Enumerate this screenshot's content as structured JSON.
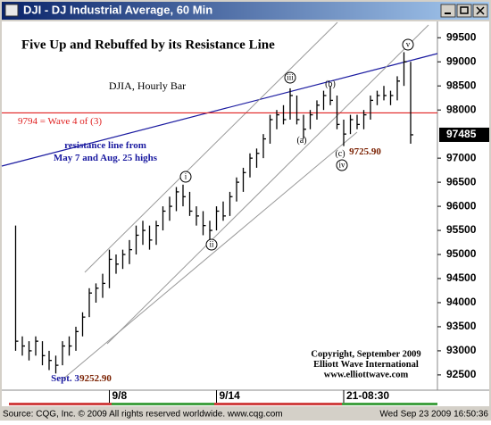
{
  "window_title": "DJI - DJ Industrial Average, 60 Min",
  "status_bar": {
    "source": "Source: CQG, Inc. © 2009 All rights reserved worldwide. www.cqg.com",
    "datetime": "Wed Sep 23 2009 16:50:36"
  },
  "chart_data": {
    "type": "ohlc",
    "title": "Five Up and Rebuffed by its Resistance Line",
    "subtitle": "DJIA, Hourly Bar",
    "color": "#000000",
    "high": [
      95600,
      93300,
      93200,
      93300,
      93200,
      93000,
      92900,
      93200,
      93300,
      93500,
      93800,
      94300,
      94400,
      94600,
      95100,
      95000,
      95100,
      95300,
      95600,
      95700,
      95600,
      95700,
      96000,
      96200,
      96400,
      96450,
      96300,
      96000,
      95900,
      95700,
      96000,
      96100,
      96300,
      96600,
      96800,
      97100,
      97200,
      97500,
      97900,
      98000,
      98100,
      98450,
      98300,
      97900,
      98000,
      98200,
      98400,
      98500,
      98300,
      97800,
      97900,
      97900,
      98000,
      98300,
      98400,
      98500,
      98400,
      98700,
      99200,
      99000
    ],
    "low": [
      93000,
      92900,
      92800,
      92900,
      92700,
      92600,
      92529,
      92700,
      92900,
      93000,
      93300,
      93700,
      94000,
      94100,
      94300,
      94600,
      94700,
      94800,
      95000,
      95200,
      95100,
      95200,
      95500,
      95700,
      95900,
      96000,
      95800,
      95600,
      95400,
      95300,
      95500,
      95700,
      95800,
      96100,
      96300,
      96600,
      96800,
      97000,
      97300,
      97600,
      97700,
      97800,
      97700,
      97400,
      97600,
      97800,
      98000,
      98100,
      97600,
      97250,
      97500,
      97600,
      97600,
      97800,
      98100,
      98200,
      98100,
      98200,
      98500,
      97300
    ],
    "close": [
      93200,
      93100,
      93000,
      93200,
      92900,
      92800,
      92700,
      93100,
      93100,
      93400,
      93700,
      94200,
      94300,
      94400,
      94900,
      94800,
      95000,
      95100,
      95400,
      95500,
      95300,
      95600,
      95900,
      96000,
      96300,
      96200,
      95900,
      95800,
      95600,
      95500,
      95900,
      95800,
      96200,
      96500,
      96700,
      97000,
      97100,
      97400,
      97800,
      97900,
      97800,
      98300,
      97800,
      97600,
      97900,
      98100,
      98300,
      98200,
      97700,
      97500,
      97800,
      97700,
      97900,
      98200,
      98300,
      98300,
      98300,
      98600,
      99000,
      97485
    ],
    "xlim": [
      -1,
      63
    ],
    "xticks": [
      {
        "value": 14,
        "label": "9/8"
      },
      {
        "value": 30,
        "label": "9/14"
      },
      {
        "value": 49,
        "label": "21-08:30"
      }
    ],
    "ylim": [
      92220,
      99820
    ],
    "yticks": [
      92500,
      93000,
      93500,
      94000,
      94500,
      95000,
      95500,
      96000,
      96500,
      97000,
      98000,
      98500,
      99000,
      99500
    ],
    "hline": {
      "value": 97940,
      "label": "9794 = Wave 4 of (3)",
      "color": "#e02020"
    },
    "annotations": [
      "i",
      "ii",
      "iii",
      "(a)",
      "(b)",
      "(c)",
      "iv",
      "v",
      "9725.90",
      "Sept. 3",
      "9252.90",
      "resistance line from",
      "May 7 and Aug. 25 highs"
    ],
    "copyright": [
      "Copyright, September 2009",
      "Elliott Wave International",
      "www.elliottwave.com"
    ]
  }
}
